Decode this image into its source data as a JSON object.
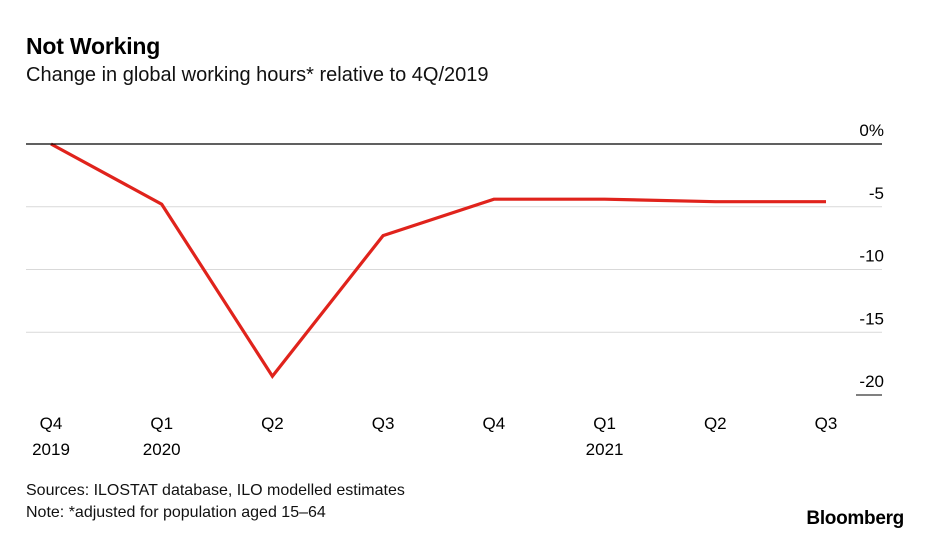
{
  "title": "Not Working",
  "subtitle": "Change in global working hours* relative to 4Q/2019",
  "sources": "Sources: ILOSTAT database, ILO modelled estimates",
  "note": "Note: *adjusted for population aged 15–64",
  "brand": "Bloomberg",
  "chart_data": {
    "type": "line",
    "categories": [
      "Q4\n2019",
      "Q1\n2020",
      "Q2",
      "Q3",
      "Q4",
      "Q1\n2021",
      "Q2",
      "Q3"
    ],
    "x_tick_labels": [
      {
        "top": "Q4",
        "bottom": "2019"
      },
      {
        "top": "Q1",
        "bottom": "2020"
      },
      {
        "top": "Q2",
        "bottom": ""
      },
      {
        "top": "Q3",
        "bottom": ""
      },
      {
        "top": "Q4",
        "bottom": ""
      },
      {
        "top": "Q1",
        "bottom": "2021"
      },
      {
        "top": "Q2",
        "bottom": ""
      },
      {
        "top": "Q3",
        "bottom": ""
      }
    ],
    "series": [
      {
        "values": [
          0,
          -4.8,
          -18.5,
          -7.3,
          -4.4,
          -4.4,
          -4.6,
          -4.6
        ]
      }
    ],
    "y_ticks": [
      0,
      -5,
      -10,
      -15,
      -20
    ],
    "y_tick_labels": [
      "0%",
      "-5",
      "-10",
      "-15",
      "-20"
    ],
    "ylim": [
      -20,
      0
    ],
    "grid": true,
    "y_axis_position": "right",
    "line_color": "#e0231c",
    "grid_color": "#d9d9d9",
    "zero_line_color": "#000000"
  }
}
